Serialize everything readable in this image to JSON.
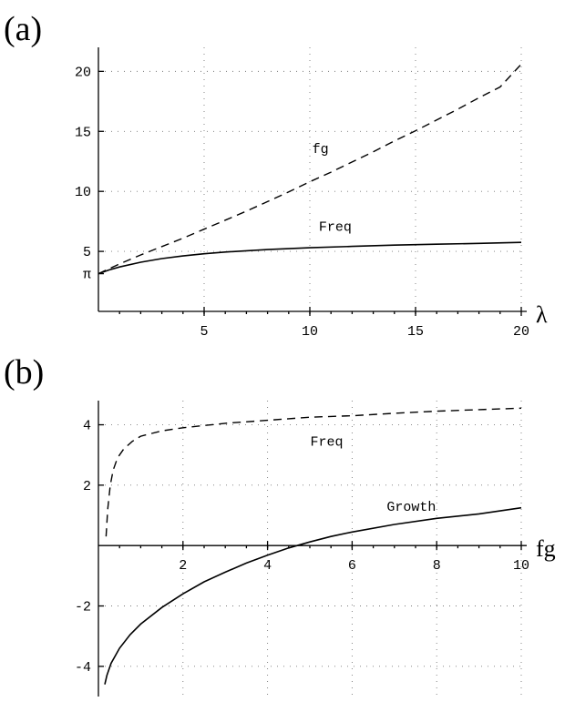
{
  "chart_data": [
    {
      "panel_label": "(a)",
      "type": "line",
      "xlabel": "λ",
      "ylabel": "",
      "xlim": [
        0,
        20
      ],
      "ylim": [
        0,
        22
      ],
      "grid": true,
      "x_ticks": [
        {
          "value": 5,
          "label": "5"
        },
        {
          "value": 10,
          "label": "10"
        },
        {
          "value": 15,
          "label": "15"
        },
        {
          "value": 20,
          "label": "20"
        }
      ],
      "y_ticks": [
        {
          "value": 3.1416,
          "label": "π"
        },
        {
          "value": 5,
          "label": "5"
        },
        {
          "value": 10,
          "label": "10"
        },
        {
          "value": 15,
          "label": "15"
        },
        {
          "value": 20,
          "label": "20"
        }
      ],
      "series": [
        {
          "name": "fg",
          "style": "dashed",
          "label_at": [
            10.5,
            13.2
          ],
          "x": [
            0,
            0.5,
            1,
            2,
            3,
            4,
            5,
            6,
            7,
            8,
            9,
            10,
            11,
            12,
            13,
            14,
            15,
            16,
            17,
            18,
            19,
            20
          ],
          "y": [
            3.14,
            3.55,
            3.95,
            4.7,
            5.4,
            6.1,
            6.85,
            7.6,
            8.35,
            9.15,
            9.95,
            10.8,
            11.6,
            12.45,
            13.3,
            14.2,
            15.05,
            15.95,
            16.85,
            17.8,
            18.7,
            20.6
          ]
        },
        {
          "name": "Freq",
          "style": "solid",
          "label_at": [
            11.2,
            6.7
          ],
          "x": [
            0,
            0.5,
            1,
            2,
            3,
            4,
            5,
            6,
            8,
            10,
            12,
            14,
            16,
            18,
            20
          ],
          "y": [
            3.14,
            3.45,
            3.7,
            4.1,
            4.4,
            4.62,
            4.8,
            4.95,
            5.15,
            5.3,
            5.42,
            5.52,
            5.6,
            5.67,
            5.75
          ]
        }
      ]
    },
    {
      "panel_label": "(b)",
      "type": "line",
      "xlabel": "fg",
      "ylabel": "",
      "xlim": [
        0,
        10
      ],
      "ylim": [
        -5,
        4.8
      ],
      "grid": true,
      "x_ticks": [
        {
          "value": 2,
          "label": "2"
        },
        {
          "value": 4,
          "label": "4"
        },
        {
          "value": 6,
          "label": "6"
        },
        {
          "value": 8,
          "label": "8"
        },
        {
          "value": 10,
          "label": "10"
        }
      ],
      "y_ticks": [
        {
          "value": -4,
          "label": "-4"
        },
        {
          "value": -2,
          "label": "-2"
        },
        {
          "value": 2,
          "label": "2"
        },
        {
          "value": 4,
          "label": "4"
        }
      ],
      "series": [
        {
          "name": "Freq",
          "style": "dashed",
          "label_at": [
            5.4,
            3.3
          ],
          "x": [
            0.18,
            0.22,
            0.28,
            0.35,
            0.45,
            0.6,
            0.8,
            1,
            1.5,
            2,
            3,
            4,
            5,
            6,
            7,
            8,
            9,
            10
          ],
          "y": [
            0.3,
            1.2,
            2,
            2.5,
            2.9,
            3.2,
            3.45,
            3.62,
            3.8,
            3.9,
            4.05,
            4.15,
            4.25,
            4.3,
            4.38,
            4.45,
            4.5,
            4.55
          ]
        },
        {
          "name": "Growth",
          "style": "solid",
          "label_at": [
            7.4,
            1.15
          ],
          "x": [
            0.15,
            0.2,
            0.3,
            0.5,
            0.75,
            1,
            1.5,
            2,
            2.5,
            3,
            3.5,
            4,
            4.5,
            5,
            5.5,
            6,
            7,
            8,
            9,
            10
          ],
          "y": [
            -4.6,
            -4.3,
            -3.9,
            -3.4,
            -2.95,
            -2.6,
            -2.05,
            -1.6,
            -1.2,
            -0.88,
            -0.58,
            -0.32,
            -0.08,
            0.12,
            0.3,
            0.45,
            0.7,
            0.9,
            1.05,
            1.25
          ]
        }
      ]
    }
  ]
}
